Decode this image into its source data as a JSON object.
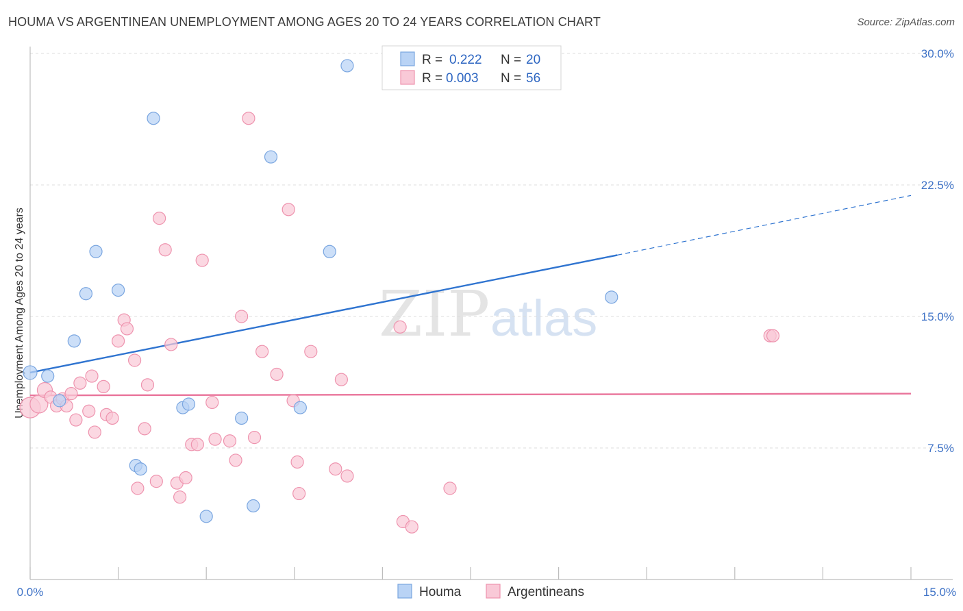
{
  "title": "HOUMA VS ARGENTINEAN UNEMPLOYMENT AMONG AGES 20 TO 24 YEARS CORRELATION CHART",
  "source": "Source: ZipAtlas.com",
  "watermark": {
    "zip": "ZIP",
    "atlas": "atlas"
  },
  "colors": {
    "blue_fill": "#b9d3f5",
    "blue_stroke": "#7aa6e0",
    "blue_line": "#2f74d0",
    "pink_fill": "#f9c9d7",
    "pink_stroke": "#ee93ae",
    "pink_line": "#e9739a",
    "axis_text": "#3f73c7",
    "grid": "#dcdcdc"
  },
  "chart_data": {
    "type": "scatter",
    "xlabel": "",
    "ylabel": "Unemployment Among Ages 20 to 24 years",
    "xlim": [
      0,
      15
    ],
    "ylim": [
      0,
      30
    ],
    "x_tick_labels": {
      "left": "0.0%",
      "right": "15.0%"
    },
    "y_ticks": [
      {
        "value": 7.5,
        "label": "7.5%"
      },
      {
        "value": 15,
        "label": "15.0%"
      },
      {
        "value": 22.5,
        "label": "22.5%"
      },
      {
        "value": 30,
        "label": "30.0%"
      }
    ],
    "legend": {
      "r_label": "R =",
      "n_label": "N =",
      "entries": [
        {
          "r": "0.222",
          "n": "20"
        },
        {
          "r": "0.003",
          "n": "56"
        }
      ]
    },
    "series": [
      {
        "name": "Houma",
        "trend": {
          "x0": 0,
          "y0": 11.8,
          "x1": 10.0,
          "y1": 18.5,
          "dash_to_x": 15,
          "dash_to_y": 21.9
        },
        "points": [
          [
            0.0,
            11.8,
            10
          ],
          [
            0.3,
            11.6,
            9
          ],
          [
            0.5,
            10.2,
            9
          ],
          [
            0.75,
            13.6,
            9
          ],
          [
            0.95,
            16.3,
            9
          ],
          [
            1.12,
            18.7,
            9
          ],
          [
            1.5,
            16.5,
            9
          ],
          [
            1.8,
            6.5,
            9
          ],
          [
            1.88,
            6.3,
            9
          ],
          [
            2.1,
            26.3,
            9
          ],
          [
            2.6,
            9.8,
            9
          ],
          [
            2.7,
            10.0,
            9
          ],
          [
            3.0,
            3.6,
            9
          ],
          [
            3.6,
            9.2,
            9
          ],
          [
            3.8,
            4.2,
            9
          ],
          [
            4.1,
            24.1,
            9
          ],
          [
            4.6,
            9.8,
            9
          ],
          [
            5.1,
            18.7,
            9
          ],
          [
            5.4,
            29.3,
            9
          ],
          [
            9.9,
            16.1,
            9
          ]
        ]
      },
      {
        "name": "Argentineans",
        "trend": {
          "x0": 0,
          "y0": 10.5,
          "x1": 15,
          "y1": 10.6
        },
        "points": [
          [
            0.0,
            9.8,
            15
          ],
          [
            0.15,
            10.0,
            13
          ],
          [
            0.25,
            10.8,
            11
          ],
          [
            0.35,
            10.4,
            9
          ],
          [
            0.45,
            9.9,
            9
          ],
          [
            0.55,
            10.3,
            9
          ],
          [
            0.62,
            9.9,
            9
          ],
          [
            0.7,
            10.6,
            9
          ],
          [
            0.78,
            9.1,
            9
          ],
          [
            0.85,
            11.2,
            9
          ],
          [
            1.0,
            9.6,
            9
          ],
          [
            1.05,
            11.6,
            9
          ],
          [
            1.1,
            8.4,
            9
          ],
          [
            1.25,
            11.0,
            9
          ],
          [
            1.3,
            9.4,
            9
          ],
          [
            1.4,
            9.2,
            9
          ],
          [
            1.5,
            13.6,
            9
          ],
          [
            1.6,
            14.8,
            9
          ],
          [
            1.65,
            14.3,
            9
          ],
          [
            1.78,
            12.5,
            9
          ],
          [
            1.83,
            5.2,
            9
          ],
          [
            1.95,
            8.6,
            9
          ],
          [
            2.0,
            11.1,
            9
          ],
          [
            2.15,
            5.6,
            9
          ],
          [
            2.2,
            20.6,
            9
          ],
          [
            2.3,
            18.8,
            9
          ],
          [
            2.4,
            13.4,
            9
          ],
          [
            2.5,
            5.5,
            9
          ],
          [
            2.55,
            4.7,
            9
          ],
          [
            2.65,
            5.8,
            9
          ],
          [
            2.75,
            7.7,
            9
          ],
          [
            2.85,
            7.7,
            9
          ],
          [
            2.93,
            18.2,
            9
          ],
          [
            3.1,
            10.1,
            9
          ],
          [
            3.15,
            8.0,
            9
          ],
          [
            3.4,
            7.9,
            9
          ],
          [
            3.5,
            6.8,
            9
          ],
          [
            3.6,
            15.0,
            9
          ],
          [
            3.72,
            26.3,
            9
          ],
          [
            3.82,
            8.1,
            9
          ],
          [
            3.95,
            13.0,
            9
          ],
          [
            4.2,
            11.7,
            9
          ],
          [
            4.4,
            21.1,
            9
          ],
          [
            4.48,
            10.2,
            9
          ],
          [
            4.55,
            6.7,
            9
          ],
          [
            4.58,
            4.9,
            9
          ],
          [
            4.78,
            13.0,
            9
          ],
          [
            5.2,
            6.3,
            9
          ],
          [
            5.3,
            11.4,
            9
          ],
          [
            5.4,
            5.9,
            9
          ],
          [
            6.3,
            14.4,
            9
          ],
          [
            6.35,
            3.3,
            9
          ],
          [
            6.5,
            3.0,
            9
          ],
          [
            7.15,
            5.2,
            9
          ],
          [
            12.6,
            13.9,
            9
          ],
          [
            12.65,
            13.9,
            9
          ]
        ]
      }
    ]
  }
}
